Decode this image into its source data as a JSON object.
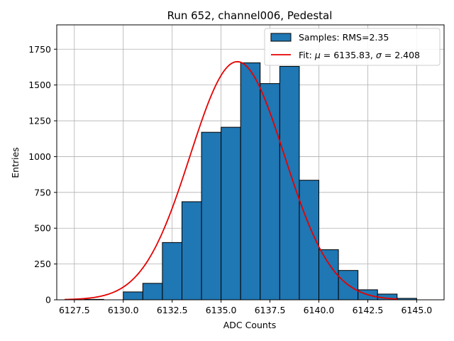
{
  "chart_data": {
    "type": "bar",
    "title": "Run 652, channel006, Pedestal",
    "xlabel": "ADC Counts",
    "ylabel": "Entries",
    "xlim": [
      6126.6,
      6146.4
    ],
    "ylim": [
      0,
      1920
    ],
    "grid": true,
    "legend_placement": "top-right",
    "x_ticks": [
      6127.5,
      6130.0,
      6132.5,
      6135.0,
      6137.5,
      6140.0,
      6142.5,
      6145.0
    ],
    "x_tick_labels": [
      "6127.5",
      "6130.0",
      "6132.5",
      "6135.0",
      "6137.5",
      "6140.0",
      "6142.5",
      "6145.0"
    ],
    "y_ticks": [
      0,
      250,
      500,
      750,
      1000,
      1250,
      1500,
      1750
    ],
    "y_tick_labels": [
      "0",
      "250",
      "500",
      "750",
      "1000",
      "1250",
      "1500",
      "1750"
    ],
    "bin_width": 1,
    "bin_edges_start": 6128,
    "bin_values": [
      3,
      0,
      55,
      115,
      400,
      685,
      1170,
      1205,
      1655,
      1510,
      1630,
      835,
      350,
      205,
      70,
      40,
      10
    ],
    "fit": {
      "mu": 6135.83,
      "sigma": 2.408,
      "amplitude": 1663,
      "x_range": [
        6127,
        6144
      ]
    },
    "legend": [
      {
        "label": "Samples: RMS=2.35",
        "kind": "patch",
        "color": "#1f77b4"
      },
      {
        "label_prefix": "Fit: ",
        "label_mu": "μ",
        "label_mid": " = 6135.83, ",
        "label_sigma": "σ",
        "label_suffix": " = 2.408",
        "kind": "line",
        "color": "#e60000"
      }
    ],
    "colors": {
      "bar": "#1f77b4",
      "fit": "#e60000",
      "grid": "#b0b0b0"
    }
  }
}
